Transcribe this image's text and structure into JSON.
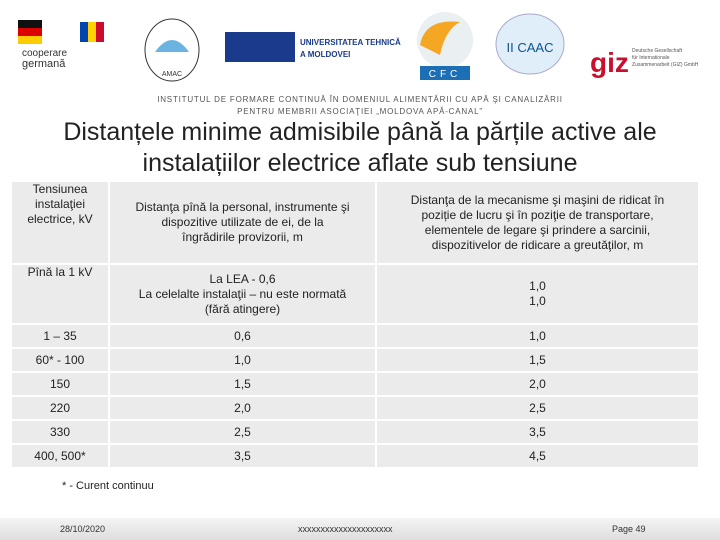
{
  "logos": {
    "coop": [
      "cooperare",
      "germană"
    ],
    "amac": "AMAC",
    "utm": [
      "UNIVERSITATEA TEHNICĂ",
      "A MOLDOVEI"
    ],
    "cfc": "CFC",
    "caac": "II CAAC",
    "giz": "giz",
    "giz_text": [
      "Deutsche Gesellschaft",
      "für Internationale",
      "Zusammenarbeit (GIZ) GmbH"
    ]
  },
  "header": {
    "institute": [
      "INSTITUTUL DE FORMARE CONTINUĂ ÎN DOMENIUL ALIMENTĂRII CU APĂ ŞI CANALIZĂRII",
      "PENTRU MEMBRII ASOCIAŢIEI „MOLDOVA APĂ-CANAL”"
    ],
    "title": [
      "Distanțele minime admisibile până la părțile active ale",
      "instalațiilor electrice aflate sub tensiune"
    ]
  },
  "table": {
    "rows": [
      [
        [
          "Tensiunea",
          "instalaţiei",
          "electrice, kV"
        ],
        [
          "Distanţa pînă la personal, instrumente şi",
          "dispozitive utilizate de ei, de la",
          "îngrădirile provizorii, m"
        ],
        [
          "Distanţa de la mecanisme şi maşini de ridicat în",
          "poziție de lucru şi în poziţie de transportare,",
          "elementele de legare şi prindere a sarcinii,",
          "dispozitivelor de ridicare a greutăţilor, m"
        ]
      ],
      [
        [
          "Pînă la 1 kV"
        ],
        [
          "La LEA - 0,6",
          "La celelalte instalaţii – nu este normată",
          "(fără atingere)"
        ],
        [
          "1,0",
          "1,0"
        ]
      ],
      [
        [
          "1 – 35"
        ],
        [
          "0,6"
        ],
        [
          "1,0"
        ]
      ],
      [
        [
          "60* - 100"
        ],
        [
          "1,0"
        ],
        [
          "1,5"
        ]
      ],
      [
        [
          "150"
        ],
        [
          "1,5"
        ],
        [
          "2,0"
        ]
      ],
      [
        [
          "220"
        ],
        [
          "2,0"
        ],
        [
          "2,5"
        ]
      ],
      [
        [
          "330"
        ],
        [
          "2,5"
        ],
        [
          "3,5"
        ]
      ],
      [
        [
          "400, 500*"
        ],
        [
          "3,5"
        ],
        [
          "4,5"
        ]
      ]
    ]
  },
  "note": "* - Curent continuu",
  "footer": {
    "date": "28/10/2020",
    "center": "xxxxxxxxxxxxxxxxxxxxx",
    "page": "Page 49"
  }
}
